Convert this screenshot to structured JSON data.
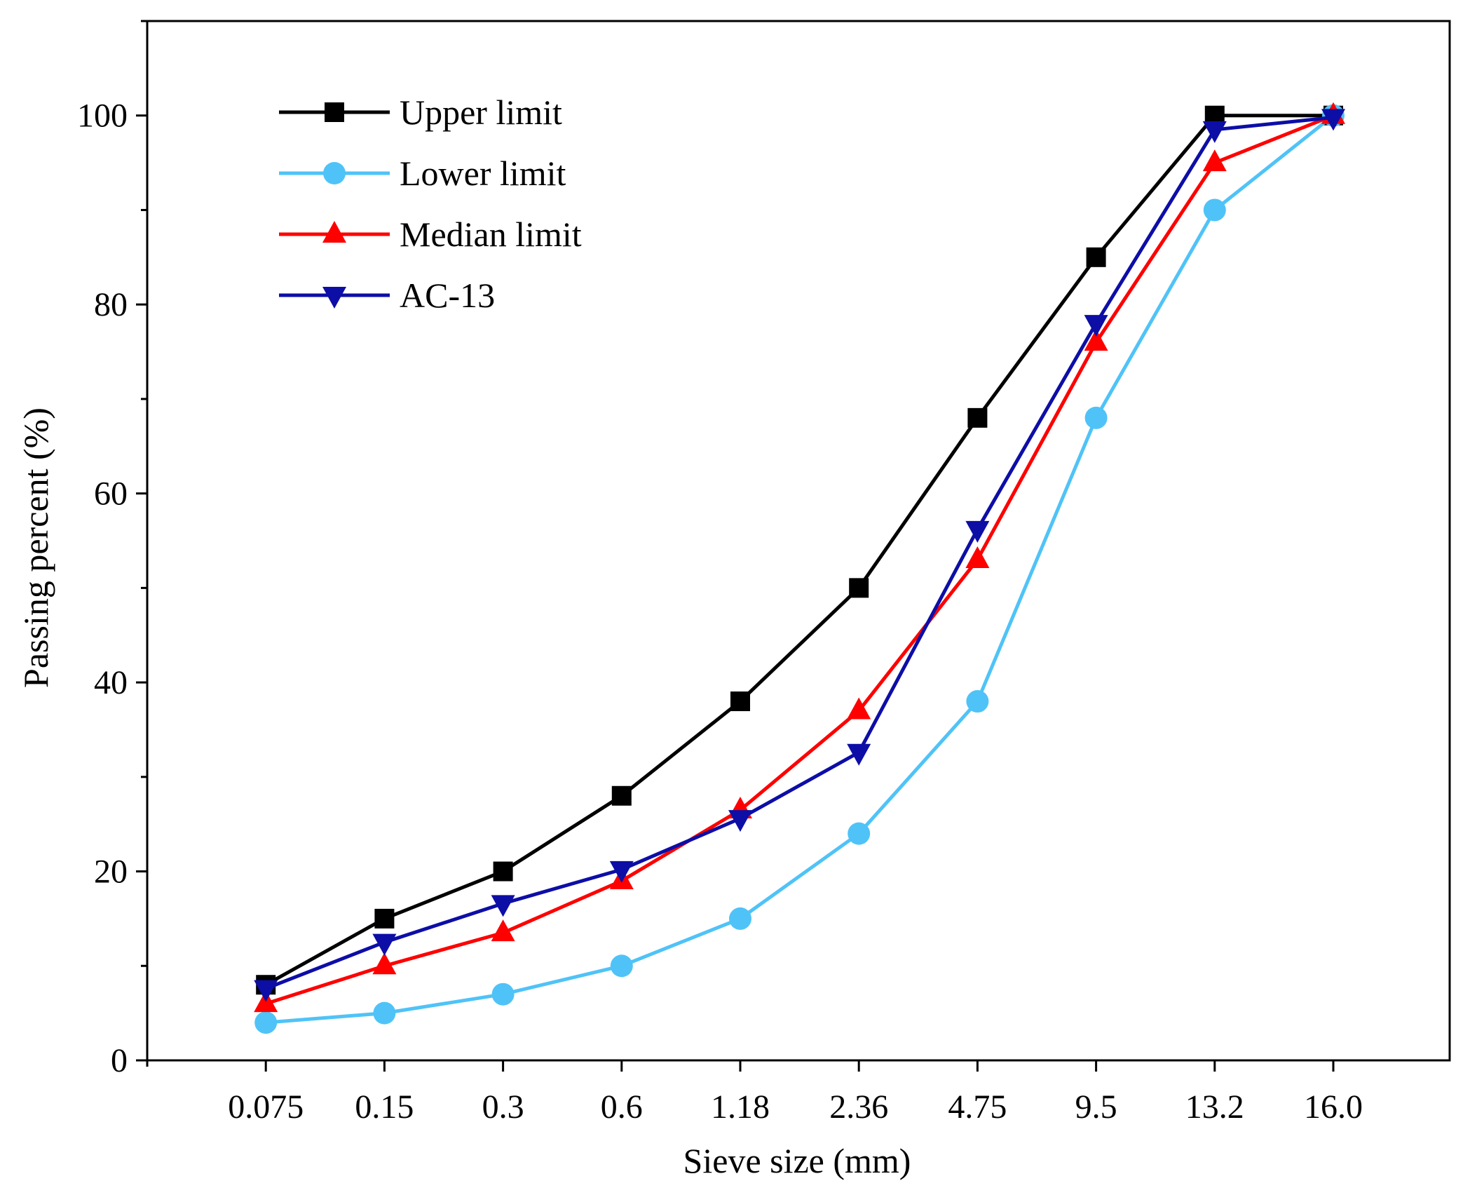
{
  "chart_data": {
    "type": "line",
    "title": "",
    "xlabel": "Sieve size (mm)",
    "ylabel": "Passing percent (%)",
    "categories": [
      "0.075",
      "0.15",
      "0.3",
      "0.6",
      "1.18",
      "2.36",
      "4.75",
      "9.5",
      "13.2",
      "16.0"
    ],
    "ylim": [
      0,
      110
    ],
    "yticks": [
      0,
      20,
      40,
      60,
      80,
      100
    ],
    "grid": false,
    "legend_position": "top-left",
    "series": [
      {
        "name": "Upper limit",
        "color": "#000000",
        "marker": "square",
        "values": [
          8,
          15,
          20,
          28,
          38,
          50,
          68,
          85,
          100,
          100
        ]
      },
      {
        "name": "Lower limit",
        "color": "#4fc3f7",
        "marker": "circle",
        "values": [
          4,
          5,
          7,
          10,
          15,
          24,
          38,
          68,
          90,
          100
        ]
      },
      {
        "name": "Median limit",
        "color": "#ff0000",
        "marker": "triangle-up",
        "values": [
          6,
          10,
          13.5,
          19,
          26.5,
          37,
          53,
          76,
          95,
          100
        ]
      },
      {
        "name": "AC-13",
        "color": "#0d0ea6",
        "marker": "triangle-down",
        "values": [
          7.6,
          12.5,
          16.6,
          20.2,
          25.6,
          32.6,
          56.2,
          78,
          98.5,
          99.8
        ]
      }
    ]
  }
}
